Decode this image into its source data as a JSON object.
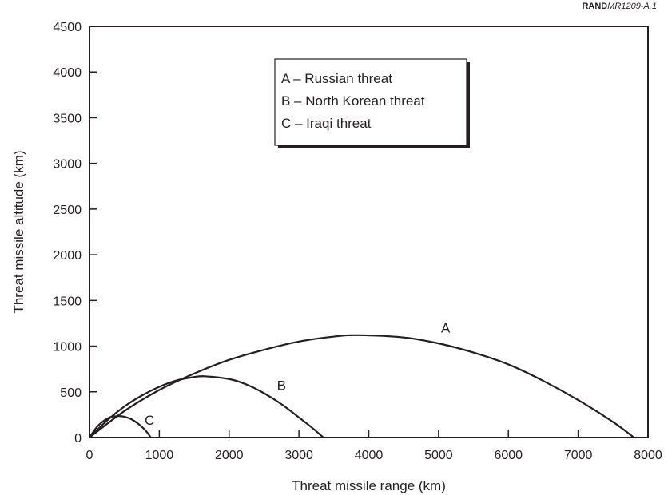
{
  "source_tag": {
    "prefix": "RAND",
    "code": "MR1209-A.1"
  },
  "chart_data": {
    "type": "line",
    "xlabel": "Threat missile range (km)",
    "ylabel": "Threat missile altitude (km)",
    "xlim": [
      0,
      8000
    ],
    "ylim": [
      0,
      4500
    ],
    "xticks": [
      0,
      1000,
      2000,
      3000,
      4000,
      5000,
      6000,
      7000,
      8000
    ],
    "yticks": [
      0,
      500,
      1000,
      1500,
      2000,
      2500,
      3000,
      3500,
      4000,
      4500
    ],
    "grid": false,
    "legend_position": "top-center",
    "legend": [
      "A – Russian threat",
      "B – North Korean threat",
      "C – Iraqi threat"
    ],
    "series": [
      {
        "name": "A",
        "range_max": 7800,
        "apogee_x": 3850,
        "apogee_y": 1120,
        "label_x": 5100,
        "label_y": 1150,
        "x": [
          0,
          500,
          1000,
          1500,
          2000,
          2500,
          3000,
          3500,
          3850,
          4500,
          5000,
          5500,
          6000,
          6500,
          7000,
          7500,
          7800
        ],
        "y": [
          0,
          290,
          520,
          700,
          850,
          960,
          1050,
          1105,
          1120,
          1095,
          1030,
          930,
          800,
          620,
          410,
          170,
          0
        ]
      },
      {
        "name": "B",
        "range_max": 3350,
        "apogee_x": 1650,
        "apogee_y": 670,
        "label_x": 2750,
        "label_y": 520,
        "x": [
          0,
          250,
          500,
          750,
          1000,
          1250,
          1500,
          1650,
          2000,
          2250,
          2500,
          2750,
          3000,
          3200,
          3350
        ],
        "y": [
          0,
          185,
          340,
          460,
          555,
          625,
          662,
          670,
          640,
          580,
          485,
          365,
          220,
          100,
          0
        ]
      },
      {
        "name": "C",
        "range_max": 880,
        "apogee_x": 420,
        "apogee_y": 235,
        "label_x": 860,
        "label_y": 140,
        "x": [
          0,
          100,
          200,
          300,
          420,
          500,
          600,
          700,
          800,
          880
        ],
        "y": [
          0,
          110,
          180,
          222,
          235,
          228,
          200,
          150,
          80,
          0
        ]
      }
    ]
  }
}
